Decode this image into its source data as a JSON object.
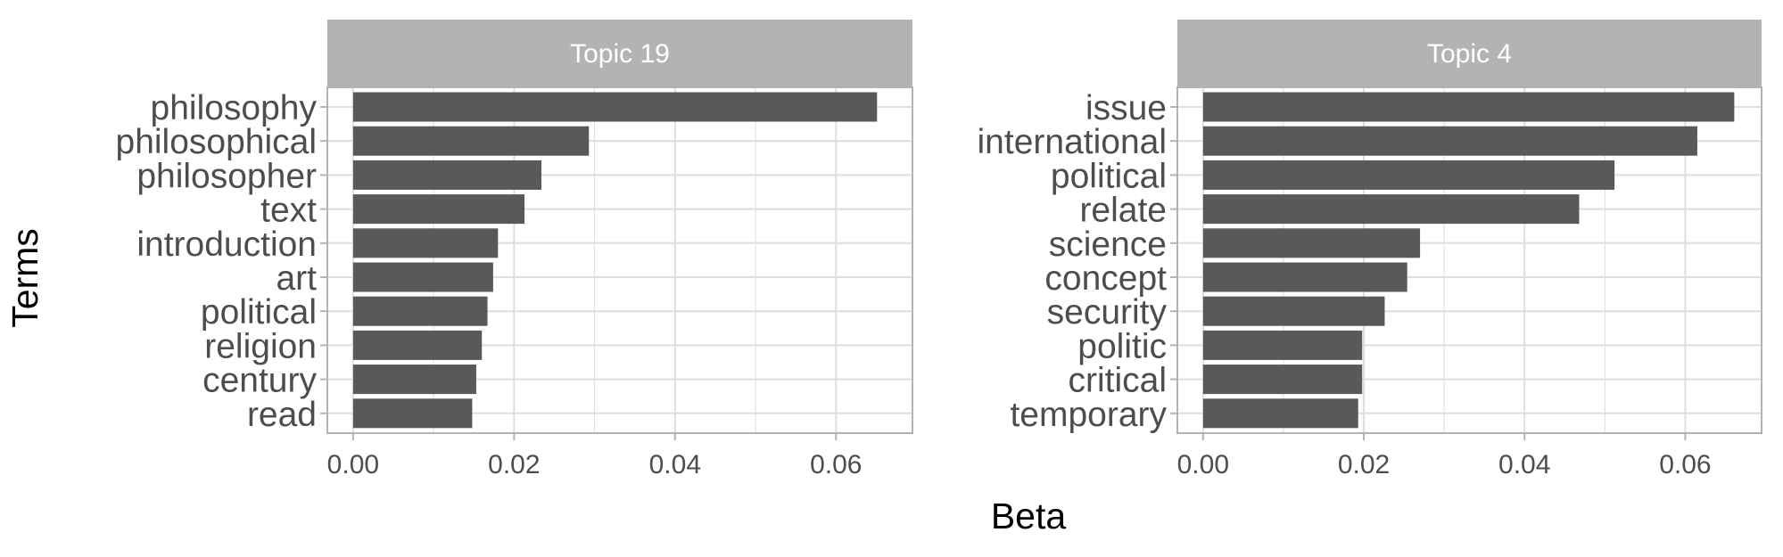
{
  "chart_data": {
    "type": "bar",
    "orientation": "horizontal",
    "xlabel": "Beta",
    "ylabel": "Terms",
    "xlim": [
      -0.0032,
      0.0695
    ],
    "xticks": [
      0.0,
      0.02,
      0.04,
      0.06
    ],
    "xtick_labels": [
      "0.00",
      "0.02",
      "0.04",
      "0.06"
    ],
    "grid": true,
    "colors": {
      "bar": "#595959",
      "strip": "#b3b3b3",
      "panel_border": "#b3b3b3",
      "grid": "#dedede"
    },
    "panels": [
      {
        "title": "Topic 19",
        "categories": [
          "philosophy",
          "philosophical",
          "philosopher",
          "text",
          "introduction",
          "art",
          "political",
          "religion",
          "century",
          "read"
        ],
        "values": [
          0.0651,
          0.0293,
          0.0234,
          0.0213,
          0.018,
          0.0174,
          0.0167,
          0.016,
          0.0153,
          0.0148
        ]
      },
      {
        "title": "Topic 4",
        "categories": [
          "issue",
          "international",
          "political",
          "relate",
          "science",
          "concept",
          "security",
          "politic",
          "critical",
          "temporary"
        ],
        "values": [
          0.0661,
          0.0615,
          0.0512,
          0.0468,
          0.027,
          0.0254,
          0.0226,
          0.0198,
          0.0198,
          0.0193
        ]
      }
    ]
  }
}
